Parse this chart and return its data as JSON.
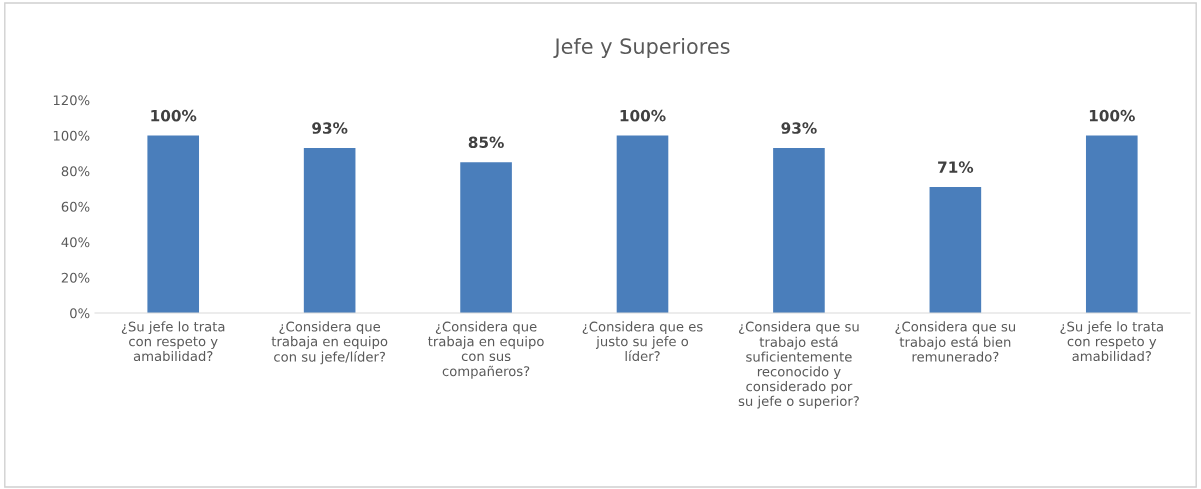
{
  "chart_data": {
    "type": "bar",
    "title": "Jefe y Superiores",
    "categories": [
      "¿Su jefe lo trata\ncon respeto y\namabilidad?",
      "¿Considera que\ntrabaja en equipo\ncon su jefe/líder?",
      "¿Considera que\ntrabaja en equipo\ncon sus\ncompañeros?",
      "¿Considera que es\njusto su jefe o\nlíder?",
      "¿Considera que su\ntrabajo está\nsuficientemente\nreconocido y\nconsiderado por\nsu jefe o superior?",
      "¿Considera que su\ntrabajo está bien\nremunerado?",
      "¿Su jefe lo trata\ncon respeto y\namabilidad?"
    ],
    "values": [
      100,
      93,
      85,
      100,
      93,
      71,
      100
    ],
    "value_labels": [
      "100%",
      "93%",
      "85%",
      "100%",
      "93%",
      "71%",
      "100%"
    ],
    "color": "#4a7ebb",
    "ylim": [
      0,
      120
    ],
    "yticks": [
      {
        "value": 0,
        "label": "0%"
      },
      {
        "value": 20,
        "label": "20%"
      },
      {
        "value": 40,
        "label": "40%"
      },
      {
        "value": 60,
        "label": "60%"
      },
      {
        "value": 80,
        "label": "80%"
      },
      {
        "value": 100,
        "label": "100%"
      },
      {
        "value": 120,
        "label": "120%"
      }
    ],
    "grid": false,
    "legend": false
  }
}
